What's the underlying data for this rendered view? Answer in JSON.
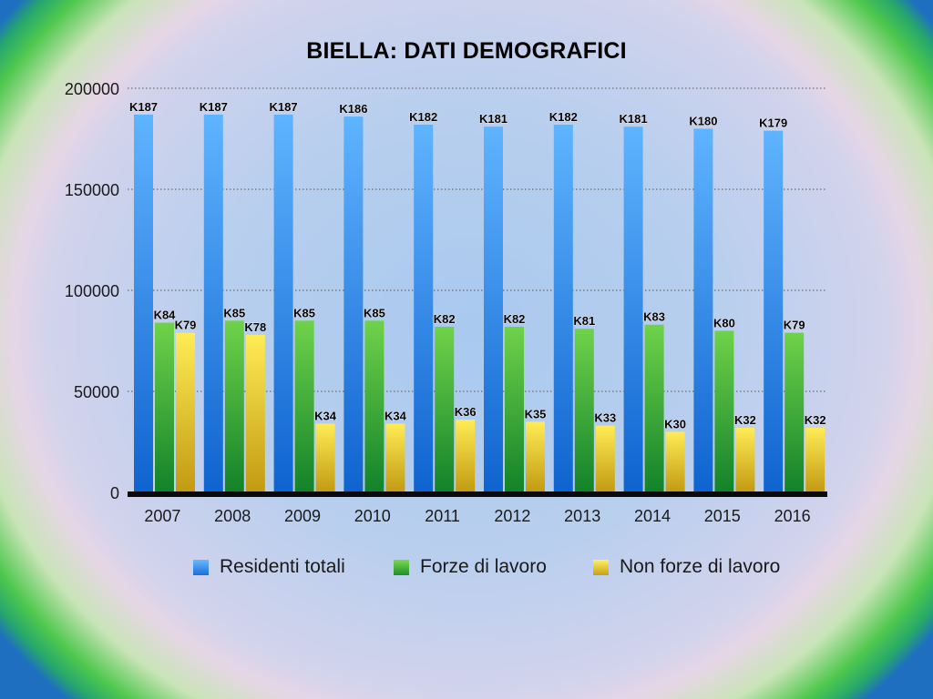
{
  "chart_data": {
    "type": "bar",
    "title": "BIELLA: DATI DEMOGRAFICI",
    "xlabel": "",
    "ylabel": "",
    "ylim": [
      0,
      200000
    ],
    "yticks": [
      "0",
      "50000",
      "100000",
      "150000",
      "200000"
    ],
    "grid": true,
    "legend_position": "bottom",
    "categories": [
      "2007",
      "2008",
      "2009",
      "2010",
      "2011",
      "2012",
      "2013",
      "2014",
      "2015",
      "2016"
    ],
    "series": [
      {
        "name": "Residenti totali",
        "color": "#2f8ff0",
        "values": [
          187000,
          187000,
          187000,
          186000,
          182000,
          181000,
          182000,
          181000,
          180000,
          179000
        ],
        "labels": [
          "K187",
          "K187",
          "K187",
          "K186",
          "K182",
          "K181",
          "K182",
          "K181",
          "K180",
          "K179"
        ]
      },
      {
        "name": "Forze di lavoro",
        "color": "#3fb23a",
        "values": [
          84000,
          85000,
          85000,
          85000,
          82000,
          82000,
          81000,
          83000,
          80000,
          79000
        ],
        "labels": [
          "K84",
          "K85",
          "K85",
          "K85",
          "K82",
          "K82",
          "K81",
          "K83",
          "K80",
          "K79"
        ]
      },
      {
        "name": "Non forze di lavoro",
        "color": "#f2c624",
        "values": [
          79000,
          78000,
          34000,
          34000,
          36000,
          35000,
          33000,
          30000,
          32000,
          32000
        ],
        "labels": [
          "K79",
          "K78",
          "K34",
          "K34",
          "K36",
          "K35",
          "K33",
          "K30",
          "K32",
          "K32"
        ]
      }
    ]
  }
}
